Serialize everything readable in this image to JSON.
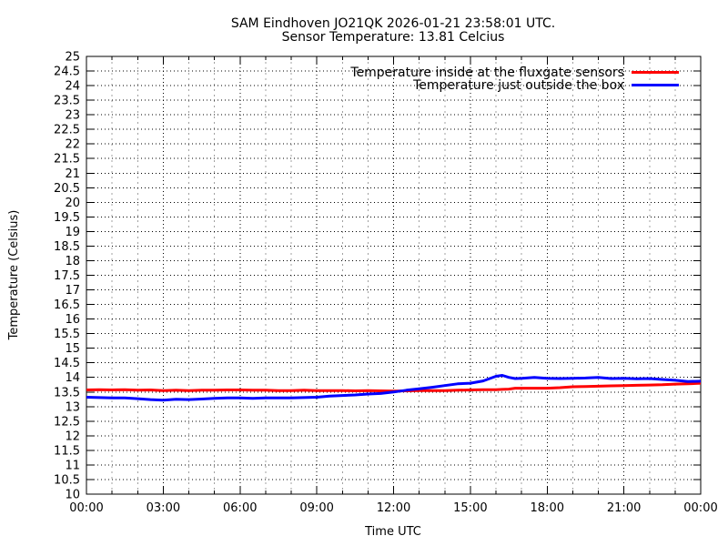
{
  "title": {
    "line1": "SAM Eindhoven JO21QK 2026-01-21 23:58:01 UTC.",
    "line2": "Sensor Temperature: 13.81 Celcius"
  },
  "colors": {
    "background": "#ffffff",
    "axis": "#000000",
    "grid_major": "#000000",
    "grid_minor": "#a0a0a0",
    "series_inside": "#ff0000",
    "series_outside": "#0000ff"
  },
  "chart_data": {
    "type": "line",
    "title": "SAM Eindhoven JO21QK 2026-01-21 23:58:01 UTC.",
    "subtitle": "Sensor Temperature: 13.81 Celcius",
    "xlabel": "Time UTC",
    "ylabel": "Temperature (Celsius)",
    "ylim": [
      10,
      25
    ],
    "xlim_hours": [
      0,
      24
    ],
    "ytick_step": 0.5,
    "xtick_step_hours": 3,
    "minor_xtick_step_hours": 1,
    "grid": "on",
    "legend_position": "top-right-inside",
    "xtick_labels": [
      "00:00",
      "03:00",
      "06:00",
      "09:00",
      "12:00",
      "15:00",
      "18:00",
      "21:00",
      "00:00"
    ],
    "ytick_labels": [
      "25",
      "24.5",
      "24",
      "23.5",
      "23",
      "22.5",
      "22",
      "21.5",
      "21",
      "20.5",
      "20",
      "19.5",
      "19",
      "18.5",
      "18",
      "17.5",
      "17",
      "16.5",
      "16",
      "15.5",
      "15",
      "14.5",
      "14",
      "13.5",
      "13",
      "12.5",
      "12",
      "11.5",
      "11",
      "10.5",
      "10"
    ],
    "series": [
      {
        "name": "Temperature inside at the fluxgate sensors",
        "color": "#ff0000",
        "x": [
          0,
          0.5,
          1,
          1.5,
          2,
          2.5,
          3,
          3.5,
          4,
          4.5,
          5,
          5.5,
          6,
          6.5,
          7,
          7.5,
          8,
          8.5,
          9,
          9.5,
          10,
          10.5,
          11,
          11.5,
          12,
          12.5,
          13,
          13.5,
          14,
          14.5,
          15,
          15.5,
          16,
          16.25,
          16.5,
          16.75,
          17,
          17.5,
          18,
          18.5,
          19,
          19.5,
          20,
          20.5,
          21,
          21.5,
          22,
          22.5,
          23,
          23.5,
          24
        ],
        "y": [
          13.57,
          13.58,
          13.57,
          13.58,
          13.56,
          13.57,
          13.55,
          13.56,
          13.55,
          13.56,
          13.56,
          13.57,
          13.57,
          13.56,
          13.56,
          13.55,
          13.55,
          13.56,
          13.55,
          13.55,
          13.55,
          13.54,
          13.55,
          13.54,
          13.53,
          13.54,
          13.55,
          13.55,
          13.55,
          13.56,
          13.57,
          13.58,
          13.58,
          13.59,
          13.6,
          13.63,
          13.63,
          13.63,
          13.63,
          13.65,
          13.68,
          13.69,
          13.7,
          13.71,
          13.72,
          13.73,
          13.74,
          13.75,
          13.77,
          13.78,
          13.8
        ]
      },
      {
        "name": "Temperature just outside the box",
        "color": "#0000ff",
        "x": [
          0,
          0.5,
          1,
          1.5,
          2,
          2.5,
          3,
          3.5,
          4,
          4.5,
          5,
          5.5,
          6,
          6.5,
          7,
          7.5,
          8,
          8.5,
          9,
          9.5,
          10,
          10.5,
          11,
          11.5,
          12,
          12.5,
          13,
          13.5,
          14,
          14.5,
          15,
          15.5,
          16,
          16.25,
          16.5,
          16.75,
          17,
          17.5,
          18,
          18.5,
          19,
          19.5,
          20,
          20.5,
          21,
          21.5,
          22,
          22.5,
          23,
          23.5,
          24
        ],
        "y": [
          13.32,
          13.31,
          13.3,
          13.3,
          13.27,
          13.24,
          13.22,
          13.25,
          13.24,
          13.26,
          13.28,
          13.3,
          13.3,
          13.28,
          13.3,
          13.3,
          13.3,
          13.31,
          13.32,
          13.36,
          13.38,
          13.4,
          13.43,
          13.45,
          13.5,
          13.56,
          13.61,
          13.66,
          13.72,
          13.78,
          13.8,
          13.88,
          14.04,
          14.07,
          14.0,
          13.96,
          13.97,
          14.0,
          13.97,
          13.96,
          13.97,
          13.98,
          14.0,
          13.96,
          13.97,
          13.95,
          13.96,
          13.93,
          13.9,
          13.86,
          13.87
        ]
      }
    ]
  }
}
